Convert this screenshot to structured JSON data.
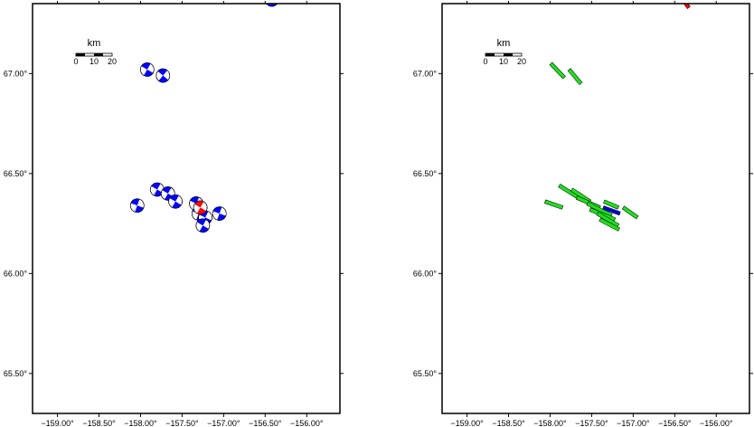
{
  "x_tick_labels": [
    "−159.00°",
    "−158.50°",
    "−158.00°",
    "−157.50°",
    "−157.00°",
    "−156.50°",
    "−156.00°"
  ],
  "y_tick_labels": [
    "67.00°",
    "66.50°",
    "66.00°",
    "65.50°"
  ],
  "x_tick_values": [
    -159.0,
    -158.5,
    -158.0,
    -157.5,
    -157.0,
    -156.5,
    -156.0
  ],
  "y_tick_values": [
    67.0,
    66.5,
    66.0,
    65.5
  ],
  "map_extent": {
    "lon": [
      -159.3,
      -155.6
    ],
    "lat": [
      65.3,
      67.35
    ]
  },
  "scalebar": {
    "title": "km",
    "labels": [
      "0",
      "10",
      "20"
    ]
  },
  "colors": {
    "mechanism_blue": "#0000ff",
    "mechanism_red": "#ff0000",
    "fault_green": "#22dd22",
    "fault_blue": "#0000cc",
    "fault_red": "#ff0000"
  },
  "left_map": {
    "mechanisms": [
      {
        "lon": -156.42,
        "lat": 67.37,
        "color": "blue",
        "rotation": 40
      },
      {
        "lon": -157.92,
        "lat": 67.02,
        "color": "blue",
        "rotation": 30
      },
      {
        "lon": -157.73,
        "lat": 66.99,
        "color": "blue",
        "rotation": 40
      },
      {
        "lon": -158.04,
        "lat": 66.34,
        "color": "blue",
        "rotation": 20
      },
      {
        "lon": -157.8,
        "lat": 66.42,
        "color": "blue",
        "rotation": 30
      },
      {
        "lon": -157.67,
        "lat": 66.4,
        "color": "blue",
        "rotation": 30
      },
      {
        "lon": -157.58,
        "lat": 66.36,
        "color": "blue",
        "rotation": 30
      },
      {
        "lon": -157.33,
        "lat": 66.35,
        "color": "blue",
        "rotation": 25
      },
      {
        "lon": -157.3,
        "lat": 66.3,
        "color": "blue",
        "rotation": 20
      },
      {
        "lon": -157.22,
        "lat": 66.28,
        "color": "blue",
        "rotation": 25
      },
      {
        "lon": -157.25,
        "lat": 66.24,
        "color": "blue",
        "rotation": 30
      },
      {
        "lon": -157.05,
        "lat": 66.3,
        "color": "blue",
        "rotation": 20
      },
      {
        "lon": -157.28,
        "lat": 66.33,
        "color": "red",
        "rotation": 30
      }
    ]
  },
  "right_map": {
    "faults": [
      {
        "lon1": -156.42,
        "lat1": 67.38,
        "lon2": -156.33,
        "lat2": 67.33,
        "color": "red"
      },
      {
        "lon1": -157.99,
        "lat1": 67.05,
        "lon2": -157.83,
        "lat2": 66.98,
        "color": "green"
      },
      {
        "lon1": -157.77,
        "lat1": 67.02,
        "lon2": -157.63,
        "lat2": 66.95,
        "color": "green"
      },
      {
        "lon1": -158.06,
        "lat1": 66.36,
        "lon2": -157.85,
        "lat2": 66.33,
        "color": "green"
      },
      {
        "lon1": -157.89,
        "lat1": 66.44,
        "lon2": -157.62,
        "lat2": 66.37,
        "color": "green"
      },
      {
        "lon1": -157.74,
        "lat1": 66.42,
        "lon2": -157.52,
        "lat2": 66.36,
        "color": "green"
      },
      {
        "lon1": -157.68,
        "lat1": 66.38,
        "lon2": -157.4,
        "lat2": 66.33,
        "color": "green"
      },
      {
        "lon1": -157.55,
        "lat1": 66.35,
        "lon2": -157.26,
        "lat2": 66.29,
        "color": "green"
      },
      {
        "lon1": -157.52,
        "lat1": 66.32,
        "lon2": -157.22,
        "lat2": 66.27,
        "color": "green"
      },
      {
        "lon1": -157.43,
        "lat1": 66.3,
        "lon2": -157.18,
        "lat2": 66.24,
        "color": "green"
      },
      {
        "lon1": -157.4,
        "lat1": 66.27,
        "lon2": -157.17,
        "lat2": 66.22,
        "color": "green"
      },
      {
        "lon1": -157.35,
        "lat1": 66.36,
        "lon2": -157.18,
        "lat2": 66.33,
        "color": "green"
      },
      {
        "lon1": -157.12,
        "lat1": 66.33,
        "lon2": -156.95,
        "lat2": 66.28,
        "color": "green"
      },
      {
        "lon1": -157.36,
        "lat1": 66.33,
        "lon2": -157.16,
        "lat2": 66.3,
        "color": "blue"
      }
    ]
  }
}
